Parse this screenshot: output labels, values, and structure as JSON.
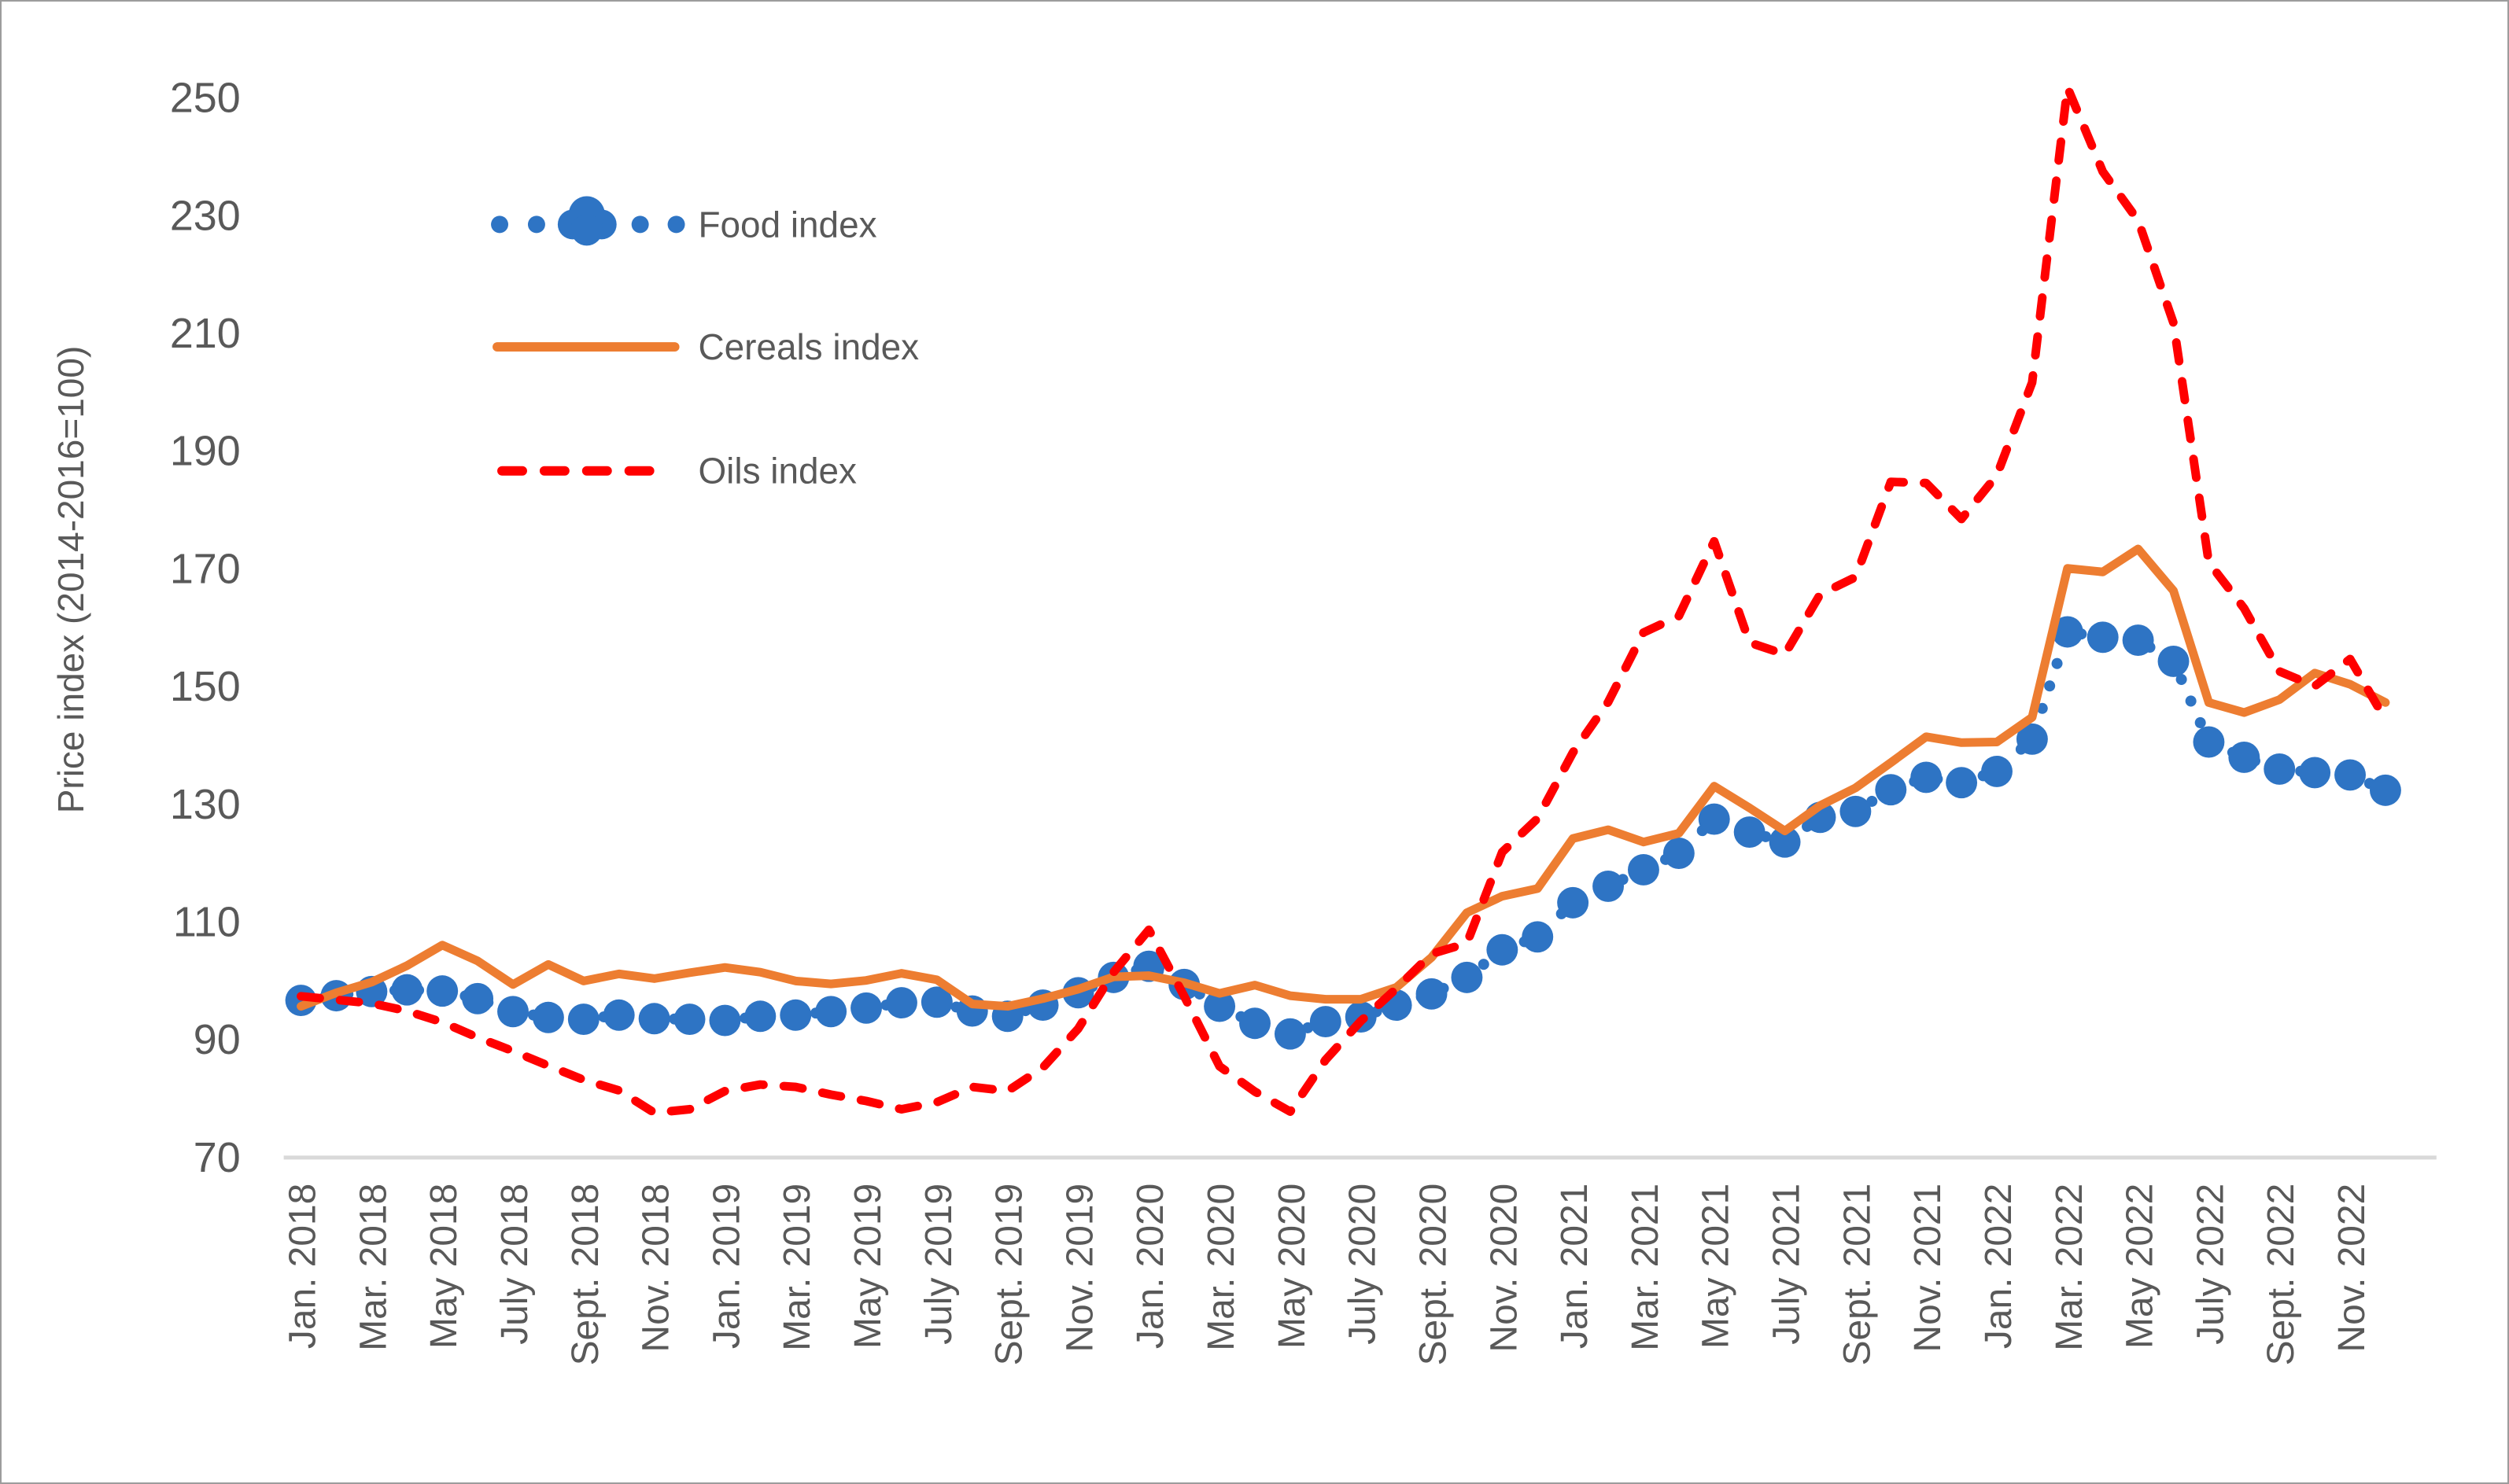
{
  "figure": {
    "background": "#ffffff",
    "border_color": "#9c9c9c",
    "text_color": "#595959",
    "axis_line_color": "#d9d9d9"
  },
  "chart_data": {
    "type": "line",
    "title": "",
    "xlabel": "",
    "ylabel": "Price index (2014-2016=100)",
    "ylim": [
      70,
      250
    ],
    "ytick_interval": 20,
    "ytick_labels": [
      "250",
      "230",
      "210",
      "190",
      "170",
      "150",
      "130",
      "110",
      "90",
      "70"
    ],
    "grid": false,
    "legend_position": "upper-left-inside",
    "x_unit": "month",
    "x_start": "Jan. 2018",
    "x_end": "Dec. 2022",
    "n_points": 60,
    "x_tick_step": 2,
    "x_tick_labels": [
      "Jan. 2018",
      "Mar. 2018",
      "May 2018",
      "July 2018",
      "Sept. 2018",
      "Nov. 2018",
      "Jan. 2019",
      "Mar. 2019",
      "May 2019",
      "July 2019",
      "Sept. 2019",
      "Nov. 2019",
      "Jan. 2020",
      "Mar. 2020",
      "May 2020",
      "July 2020",
      "Sept. 2020",
      "Nov. 2020",
      "Jan. 2021",
      "Mar. 2021",
      "May 2021",
      "July 2021",
      "Sept. 2021",
      "Nov. 2021",
      "Jan. 2022",
      "Mar. 2022",
      "May 2022",
      "July 2022",
      "Sept. 2022",
      "Nov. 2022"
    ],
    "series": [
      {
        "name": "Food index",
        "key": "food",
        "color": "#2e74c4",
        "style": "dotted-with-round-markers",
        "values": [
          96.7,
          97.5,
          98.2,
          98.5,
          98.3,
          97.0,
          94.8,
          93.8,
          93.5,
          94.2,
          93.6,
          93.5,
          93.3,
          94.0,
          94.2,
          94.8,
          95.4,
          96.3,
          96.4,
          94.9,
          94.0,
          95.9,
          98.0,
          100.6,
          102.5,
          99.4,
          95.7,
          92.8,
          91.0,
          93.1,
          93.9,
          95.9,
          97.8,
          100.6,
          105.3,
          107.5,
          113.3,
          116.1,
          118.9,
          121.7,
          127.5,
          125.3,
          123.6,
          127.8,
          128.8,
          132.5,
          134.6,
          133.7,
          135.6,
          141.1,
          159.3,
          158.4,
          157.9,
          154.3,
          140.6,
          138.0,
          136.0,
          135.4,
          135.0,
          132.4
        ]
      },
      {
        "name": "Cereals index",
        "key": "cereals",
        "color": "#ed7d31",
        "style": "solid",
        "values": [
          95.7,
          98.0,
          99.8,
          102.6,
          106.1,
          103.4,
          99.4,
          102.8,
          100.0,
          101.2,
          100.4,
          101.4,
          102.3,
          101.5,
          100.0,
          99.5,
          100.1,
          101.3,
          100.2,
          96.1,
          95.7,
          97.0,
          98.6,
          100.7,
          100.9,
          99.7,
          97.9,
          99.3,
          97.5,
          96.9,
          96.9,
          98.9,
          104.0,
          111.6,
          114.4,
          115.7,
          124.2,
          125.7,
          123.6,
          125.1,
          133.1,
          129.4,
          125.5,
          129.8,
          132.8,
          137.1,
          141.5,
          140.5,
          140.6,
          144.8,
          170.1,
          169.5,
          173.4,
          166.3,
          147.3,
          145.6,
          147.8,
          152.3,
          150.4,
          147.3
        ]
      },
      {
        "name": "Oils index",
        "key": "oils",
        "color": "#ff0000",
        "style": "dashed",
        "values": [
          97.4,
          96.8,
          96.2,
          94.9,
          93.0,
          90.4,
          88.1,
          85.6,
          83.2,
          81.4,
          77.6,
          78.2,
          81.3,
          82.4,
          82.0,
          80.7,
          79.6,
          78.2,
          79.4,
          82.0,
          81.3,
          85.3,
          91.9,
          101.5,
          108.7,
          97.4,
          85.5,
          81.2,
          77.8,
          86.6,
          93.2,
          98.7,
          104.6,
          106.4,
          121.9,
          127.6,
          138.8,
          147.4,
          159.2,
          162.0,
          174.7,
          157.5,
          155.5,
          165.7,
          168.6,
          184.8,
          184.6,
          178.5,
          185.9,
          201.7,
          251.8,
          237.5,
          229.2,
          211.8,
          171.1,
          163.3,
          152.6,
          150.1,
          154.7,
          144.4
        ]
      }
    ]
  }
}
